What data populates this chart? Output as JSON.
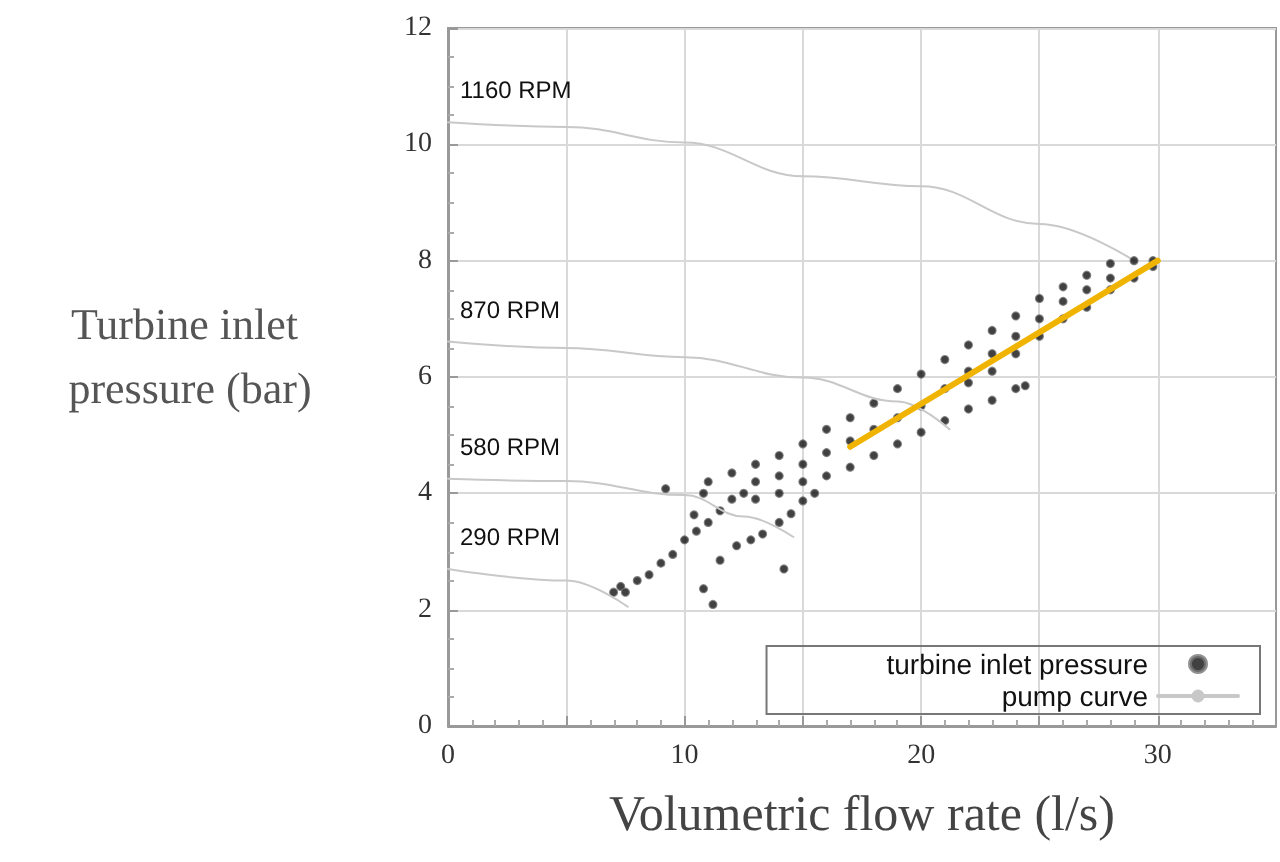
{
  "chart_data": {
    "type": "scatter",
    "xlabel": "Volumetric flow rate (l/s)",
    "ylabel": "Turbine inlet pressure (bar)",
    "xlim": [
      0,
      35
    ],
    "xticks": [
      0,
      {
        "value": 5,
        "label": null
      },
      10,
      {
        "value": 15,
        "label": null
      },
      20,
      {
        "value": 25,
        "label": null
      },
      30
    ],
    "ylim": [
      0,
      12
    ],
    "yticks": [
      0,
      2,
      4,
      6,
      8,
      10,
      12
    ],
    "grid": true,
    "legend": "bottom right",
    "annotations": [
      "1160 RPM",
      "870 RPM",
      "580 RPM",
      "290 RPM"
    ],
    "series": [
      {
        "name": "turbine inlet pressure",
        "marker": "circle",
        "color": "#111111",
        "x": [
          7,
          7.3,
          7.5,
          8,
          8.5,
          9,
          9.5,
          10,
          10.5,
          11,
          11.5,
          12,
          12.5,
          10.8,
          11,
          12,
          13,
          14,
          15,
          16,
          17,
          18,
          19,
          20,
          21,
          22,
          23,
          24,
          25,
          26,
          27,
          28,
          29,
          29.8,
          13,
          14,
          15,
          16,
          17,
          18,
          19,
          20,
          21,
          22,
          23,
          24,
          24.4,
          22,
          23,
          24,
          25,
          26,
          27,
          28,
          29,
          29.8,
          13,
          15,
          17,
          19,
          21,
          23,
          25,
          27,
          16,
          18,
          20,
          22,
          24,
          26,
          28,
          14,
          11.5,
          12.2,
          12.8,
          13.3,
          14,
          14.5,
          15,
          15.5,
          9.2,
          10.4,
          10.8,
          11.2,
          14.2
        ],
        "values": [
          2.3,
          2.4,
          2.3,
          2.5,
          2.6,
          2.8,
          2.95,
          3.2,
          3.35,
          3.5,
          3.7,
          3.9,
          4.0,
          4.0,
          4.2,
          4.35,
          4.5,
          4.65,
          4.85,
          5.1,
          5.3,
          5.55,
          5.8,
          6.05,
          6.3,
          6.55,
          6.8,
          7.05,
          7.35,
          7.55,
          7.75,
          7.95,
          8.0,
          8.0,
          3.9,
          4.0,
          4.2,
          4.3,
          4.45,
          4.65,
          4.85,
          5.05,
          5.25,
          5.45,
          5.6,
          5.8,
          5.85,
          5.9,
          6.1,
          6.4,
          6.7,
          7.0,
          7.2,
          7.5,
          7.7,
          7.9,
          4.2,
          4.5,
          4.9,
          5.3,
          5.8,
          6.4,
          7.0,
          7.5,
          4.7,
          5.1,
          5.5,
          6.1,
          6.7,
          7.3,
          7.7,
          4.3,
          2.85,
          3.1,
          3.2,
          3.3,
          3.5,
          3.65,
          3.87,
          4.0,
          4.08,
          3.63,
          2.36,
          2.09,
          2.7
        ]
      },
      {
        "name": "pump curve",
        "type": "line",
        "marker": "none",
        "color": "#c8c8c8",
        "x": [
          0,
          5,
          10,
          15,
          20,
          25,
          29
        ],
        "values": [
          10.38,
          10.3,
          10.03,
          9.45,
          9.28,
          8.63,
          8.0
        ]
      },
      {
        "type": "line",
        "marker": "none",
        "color": "#c8c8c8",
        "x": [
          0,
          5,
          10,
          15,
          19,
          21.2
        ],
        "values": [
          6.61,
          6.5,
          6.34,
          5.99,
          5.58,
          5.1
        ]
      },
      {
        "type": "line",
        "marker": "none",
        "color": "#c8c8c8",
        "x": [
          0,
          5,
          10,
          12.5,
          14.6
        ],
        "values": [
          4.25,
          4.21,
          3.97,
          3.6,
          3.25
        ]
      },
      {
        "type": "line",
        "marker": "none",
        "color": "#c8c8c8",
        "x": [
          0,
          5,
          7.6
        ],
        "values": [
          2.7,
          2.5,
          2.05
        ]
      },
      {
        "type": "line",
        "marker": "none",
        "color": "#f0b400",
        "x": [
          17,
          30
        ],
        "values": [
          4.8,
          8.0
        ]
      }
    ]
  }
}
